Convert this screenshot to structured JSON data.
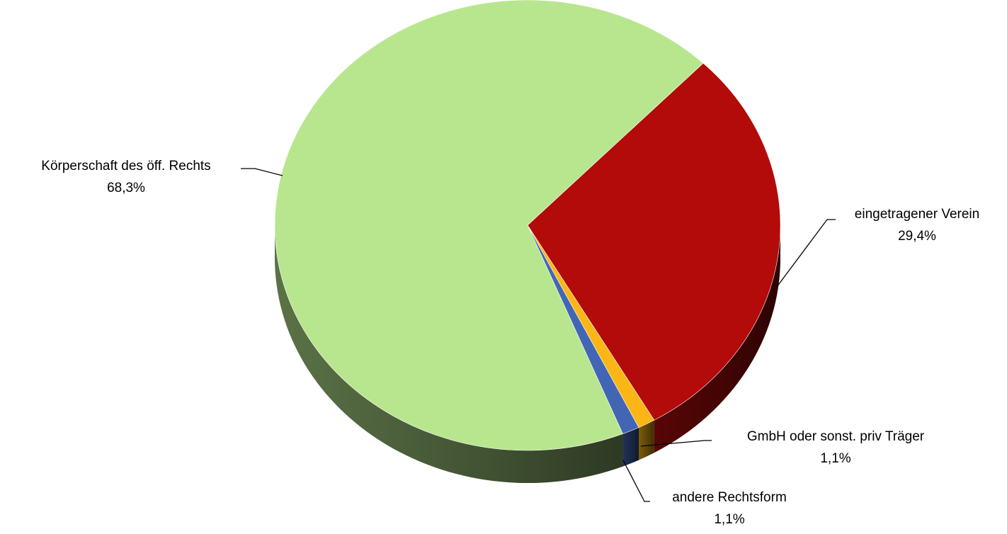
{
  "chart_data": {
    "type": "pie",
    "title": "",
    "view": "3d-tilted",
    "slices": [
      {
        "label": "eingetragener Verein",
        "value": 29.4,
        "value_label": "29,4%",
        "color": "#b30a0a"
      },
      {
        "label": "GmbH oder sonst. priv Träger",
        "value": 1.1,
        "value_label": "1,1%",
        "color": "#fbb616"
      },
      {
        "label": "andere Rechtsform",
        "value": 1.1,
        "value_label": "1,1%",
        "color": "#4266b4"
      },
      {
        "label": "Körperschaft des öff. Rechts",
        "value": 68.3,
        "value_label": "68,3%",
        "color": "#b8e68f"
      }
    ],
    "legend": "none",
    "labels": "outside-with-leader-lines"
  }
}
